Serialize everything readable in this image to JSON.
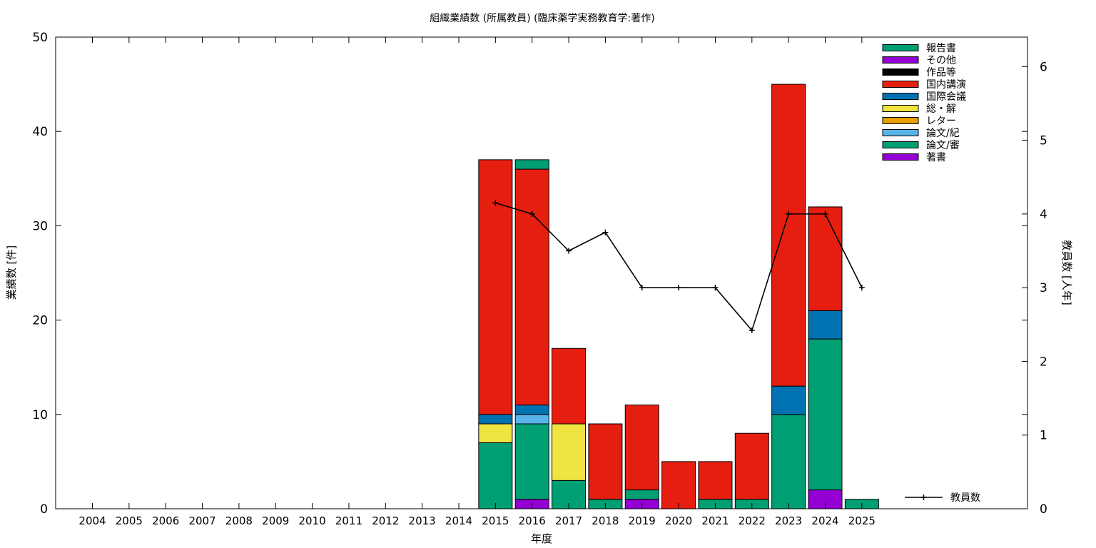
{
  "chart_data": {
    "type": "bar",
    "stacked": true,
    "title": "組織業績数 (所属教員) (臨床薬学実務教育学:著作)",
    "xlabel": "年度",
    "ylabel": "業績数 [件]",
    "y2label": "教員数 [人年]",
    "ylim": [
      0,
      50
    ],
    "y2lim": [
      0,
      6.4
    ],
    "yticks": [
      "0",
      "10",
      "20",
      "30",
      "40",
      "50"
    ],
    "y2ticks": [
      "0",
      "1",
      "2",
      "3",
      "4",
      "5",
      "6"
    ],
    "grid": false,
    "legend_position": "top-right",
    "categories": [
      "2004",
      "2005",
      "2006",
      "2007",
      "2008",
      "2009",
      "2010",
      "2011",
      "2012",
      "2013",
      "2014",
      "2015",
      "2016",
      "2017",
      "2018",
      "2019",
      "2020",
      "2021",
      "2022",
      "2023",
      "2024",
      "2025"
    ],
    "series": [
      {
        "name": "著書",
        "color": "#9400d3",
        "values": [
          0,
          0,
          0,
          0,
          0,
          0,
          0,
          0,
          0,
          0,
          0,
          0,
          1,
          0,
          0,
          1,
          0,
          0,
          0,
          0,
          2,
          0
        ]
      },
      {
        "name": "論文/審",
        "color": "#009e73",
        "values": [
          0,
          0,
          0,
          0,
          0,
          0,
          0,
          0,
          0,
          0,
          0,
          7,
          8,
          3,
          1,
          1,
          0,
          1,
          1,
          10,
          16,
          1
        ]
      },
      {
        "name": "論文/紀",
        "color": "#56b4e9",
        "values": [
          0,
          0,
          0,
          0,
          0,
          0,
          0,
          0,
          0,
          0,
          0,
          0,
          1,
          0,
          0,
          0,
          0,
          0,
          0,
          0,
          0,
          0
        ]
      },
      {
        "name": "レター",
        "color": "#e69f00",
        "values": [
          0,
          0,
          0,
          0,
          0,
          0,
          0,
          0,
          0,
          0,
          0,
          0,
          0,
          0,
          0,
          0,
          0,
          0,
          0,
          0,
          0,
          0
        ]
      },
      {
        "name": "総・解",
        "color": "#f0e442",
        "values": [
          0,
          0,
          0,
          0,
          0,
          0,
          0,
          0,
          0,
          0,
          0,
          2,
          0,
          6,
          0,
          0,
          0,
          0,
          0,
          0,
          0,
          0
        ]
      },
      {
        "name": "国際会議",
        "color": "#0072b2",
        "values": [
          0,
          0,
          0,
          0,
          0,
          0,
          0,
          0,
          0,
          0,
          0,
          1,
          1,
          0,
          0,
          0,
          0,
          0,
          0,
          3,
          3,
          0
        ]
      },
      {
        "name": "国内講演",
        "color": "#e51e10",
        "values": [
          0,
          0,
          0,
          0,
          0,
          0,
          0,
          0,
          0,
          0,
          0,
          27,
          25,
          8,
          8,
          9,
          5,
          4,
          7,
          32,
          11,
          0
        ]
      },
      {
        "name": "作品等",
        "color": "#000000",
        "values": [
          0,
          0,
          0,
          0,
          0,
          0,
          0,
          0,
          0,
          0,
          0,
          0,
          0,
          0,
          0,
          0,
          0,
          0,
          0,
          0,
          0,
          0
        ]
      },
      {
        "name": "その他",
        "color": "#9400d3",
        "values": [
          0,
          0,
          0,
          0,
          0,
          0,
          0,
          0,
          0,
          0,
          0,
          0,
          0,
          0,
          0,
          0,
          0,
          0,
          0,
          0,
          0,
          0
        ]
      },
      {
        "name": "報告書",
        "color": "#009e73",
        "values": [
          0,
          0,
          0,
          0,
          0,
          0,
          0,
          0,
          0,
          0,
          0,
          0,
          1,
          0,
          0,
          0,
          0,
          0,
          0,
          0,
          0,
          0
        ]
      }
    ],
    "legend_order": [
      "報告書",
      "その他",
      "作品等",
      "国内講演",
      "国際会議",
      "総・解",
      "レター",
      "論文/紀",
      "論文/審",
      "著書"
    ],
    "line_series": {
      "name": "教員数",
      "color": "#000000",
      "axis": "y2",
      "points": [
        {
          "x": "2015",
          "y": 4.15
        },
        {
          "x": "2016",
          "y": 4.0
        },
        {
          "x": "2017",
          "y": 3.5
        },
        {
          "x": "2018",
          "y": 3.75
        },
        {
          "x": "2019",
          "y": 3.0
        },
        {
          "x": "2020",
          "y": 3.0
        },
        {
          "x": "2021",
          "y": 3.0
        },
        {
          "x": "2022",
          "y": 2.42
        },
        {
          "x": "2023",
          "y": 4.0
        },
        {
          "x": "2024",
          "y": 4.0
        },
        {
          "x": "2025",
          "y": 3.0
        }
      ]
    }
  }
}
